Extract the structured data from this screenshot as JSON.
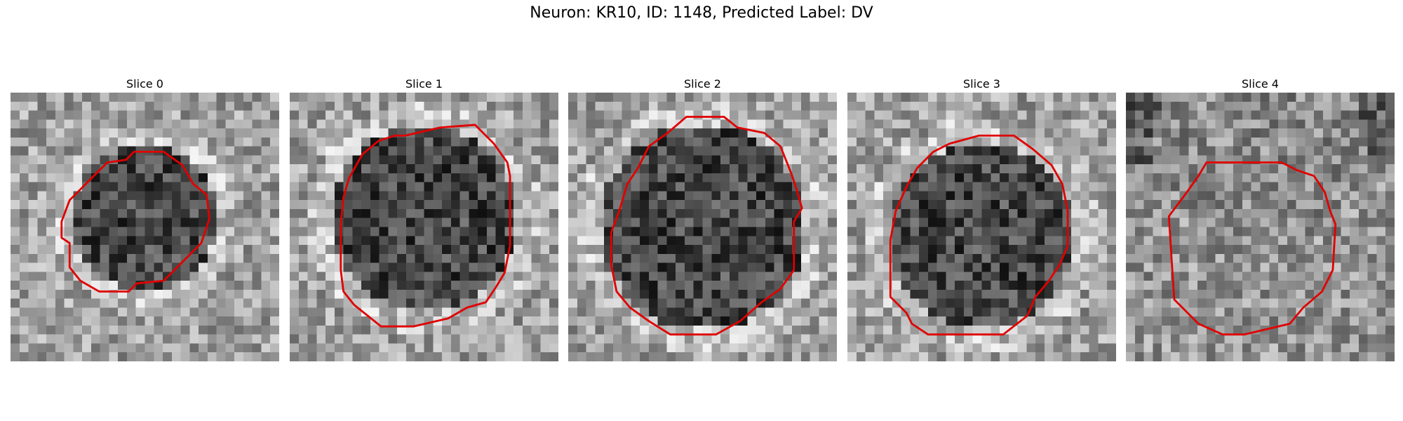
{
  "figure": {
    "title": "Neuron: KR10, ID: 1148, Predicted Label: DV"
  },
  "panels": [
    {
      "title": "Slice 0",
      "contour_color": "#e00000",
      "contour": [
        [
          0.46,
          0.22
        ],
        [
          0.57,
          0.22
        ],
        [
          0.64,
          0.27
        ],
        [
          0.68,
          0.34
        ],
        [
          0.73,
          0.38
        ],
        [
          0.74,
          0.47
        ],
        [
          0.71,
          0.56
        ],
        [
          0.64,
          0.63
        ],
        [
          0.57,
          0.7
        ],
        [
          0.47,
          0.71
        ],
        [
          0.44,
          0.74
        ],
        [
          0.33,
          0.74
        ],
        [
          0.26,
          0.7
        ],
        [
          0.22,
          0.65
        ],
        [
          0.22,
          0.56
        ],
        [
          0.19,
          0.54
        ],
        [
          0.19,
          0.48
        ],
        [
          0.22,
          0.4
        ],
        [
          0.28,
          0.34
        ],
        [
          0.36,
          0.26
        ],
        [
          0.43,
          0.25
        ]
      ]
    },
    {
      "title": "Slice 1",
      "contour_color": "#e00000",
      "contour": [
        [
          0.43,
          0.16
        ],
        [
          0.56,
          0.13
        ],
        [
          0.69,
          0.12
        ],
        [
          0.76,
          0.19
        ],
        [
          0.81,
          0.26
        ],
        [
          0.82,
          0.31
        ],
        [
          0.82,
          0.57
        ],
        [
          0.8,
          0.67
        ],
        [
          0.77,
          0.72
        ],
        [
          0.73,
          0.78
        ],
        [
          0.66,
          0.8
        ],
        [
          0.59,
          0.84
        ],
        [
          0.46,
          0.87
        ],
        [
          0.34,
          0.87
        ],
        [
          0.29,
          0.83
        ],
        [
          0.24,
          0.79
        ],
        [
          0.2,
          0.74
        ],
        [
          0.19,
          0.66
        ],
        [
          0.19,
          0.49
        ],
        [
          0.2,
          0.39
        ],
        [
          0.22,
          0.32
        ],
        [
          0.27,
          0.23
        ],
        [
          0.33,
          0.18
        ],
        [
          0.39,
          0.16
        ]
      ]
    },
    {
      "title": "Slice 2",
      "contour_color": "#e00000",
      "contour": [
        [
          0.44,
          0.09
        ],
        [
          0.58,
          0.09
        ],
        [
          0.63,
          0.13
        ],
        [
          0.73,
          0.15
        ],
        [
          0.79,
          0.2
        ],
        [
          0.83,
          0.3
        ],
        [
          0.85,
          0.36
        ],
        [
          0.87,
          0.43
        ],
        [
          0.84,
          0.48
        ],
        [
          0.84,
          0.66
        ],
        [
          0.79,
          0.73
        ],
        [
          0.72,
          0.78
        ],
        [
          0.64,
          0.85
        ],
        [
          0.55,
          0.9
        ],
        [
          0.38,
          0.9
        ],
        [
          0.3,
          0.85
        ],
        [
          0.23,
          0.8
        ],
        [
          0.18,
          0.74
        ],
        [
          0.16,
          0.64
        ],
        [
          0.16,
          0.52
        ],
        [
          0.19,
          0.44
        ],
        [
          0.22,
          0.34
        ],
        [
          0.26,
          0.28
        ],
        [
          0.3,
          0.2
        ],
        [
          0.37,
          0.15
        ]
      ]
    },
    {
      "title": "Slice 3",
      "contour_color": "#e00000",
      "contour": [
        [
          0.49,
          0.16
        ],
        [
          0.62,
          0.16
        ],
        [
          0.69,
          0.21
        ],
        [
          0.76,
          0.27
        ],
        [
          0.8,
          0.34
        ],
        [
          0.82,
          0.44
        ],
        [
          0.82,
          0.57
        ],
        [
          0.79,
          0.64
        ],
        [
          0.75,
          0.7
        ],
        [
          0.7,
          0.76
        ],
        [
          0.67,
          0.83
        ],
        [
          0.58,
          0.9
        ],
        [
          0.3,
          0.9
        ],
        [
          0.24,
          0.86
        ],
        [
          0.22,
          0.82
        ],
        [
          0.16,
          0.76
        ],
        [
          0.16,
          0.55
        ],
        [
          0.18,
          0.44
        ],
        [
          0.22,
          0.35
        ],
        [
          0.26,
          0.28
        ],
        [
          0.32,
          0.22
        ],
        [
          0.38,
          0.19
        ]
      ]
    },
    {
      "title": "Slice 4",
      "contour_color": "#e00000",
      "contour": [
        [
          0.3,
          0.26
        ],
        [
          0.36,
          0.26
        ],
        [
          0.58,
          0.26
        ],
        [
          0.64,
          0.29
        ],
        [
          0.7,
          0.31
        ],
        [
          0.74,
          0.37
        ],
        [
          0.76,
          0.44
        ],
        [
          0.78,
          0.49
        ],
        [
          0.77,
          0.66
        ],
        [
          0.73,
          0.74
        ],
        [
          0.66,
          0.8
        ],
        [
          0.61,
          0.86
        ],
        [
          0.44,
          0.9
        ],
        [
          0.36,
          0.9
        ],
        [
          0.27,
          0.86
        ],
        [
          0.22,
          0.81
        ],
        [
          0.18,
          0.77
        ],
        [
          0.17,
          0.62
        ],
        [
          0.16,
          0.46
        ],
        [
          0.22,
          0.38
        ],
        [
          0.27,
          0.31
        ]
      ]
    }
  ]
}
